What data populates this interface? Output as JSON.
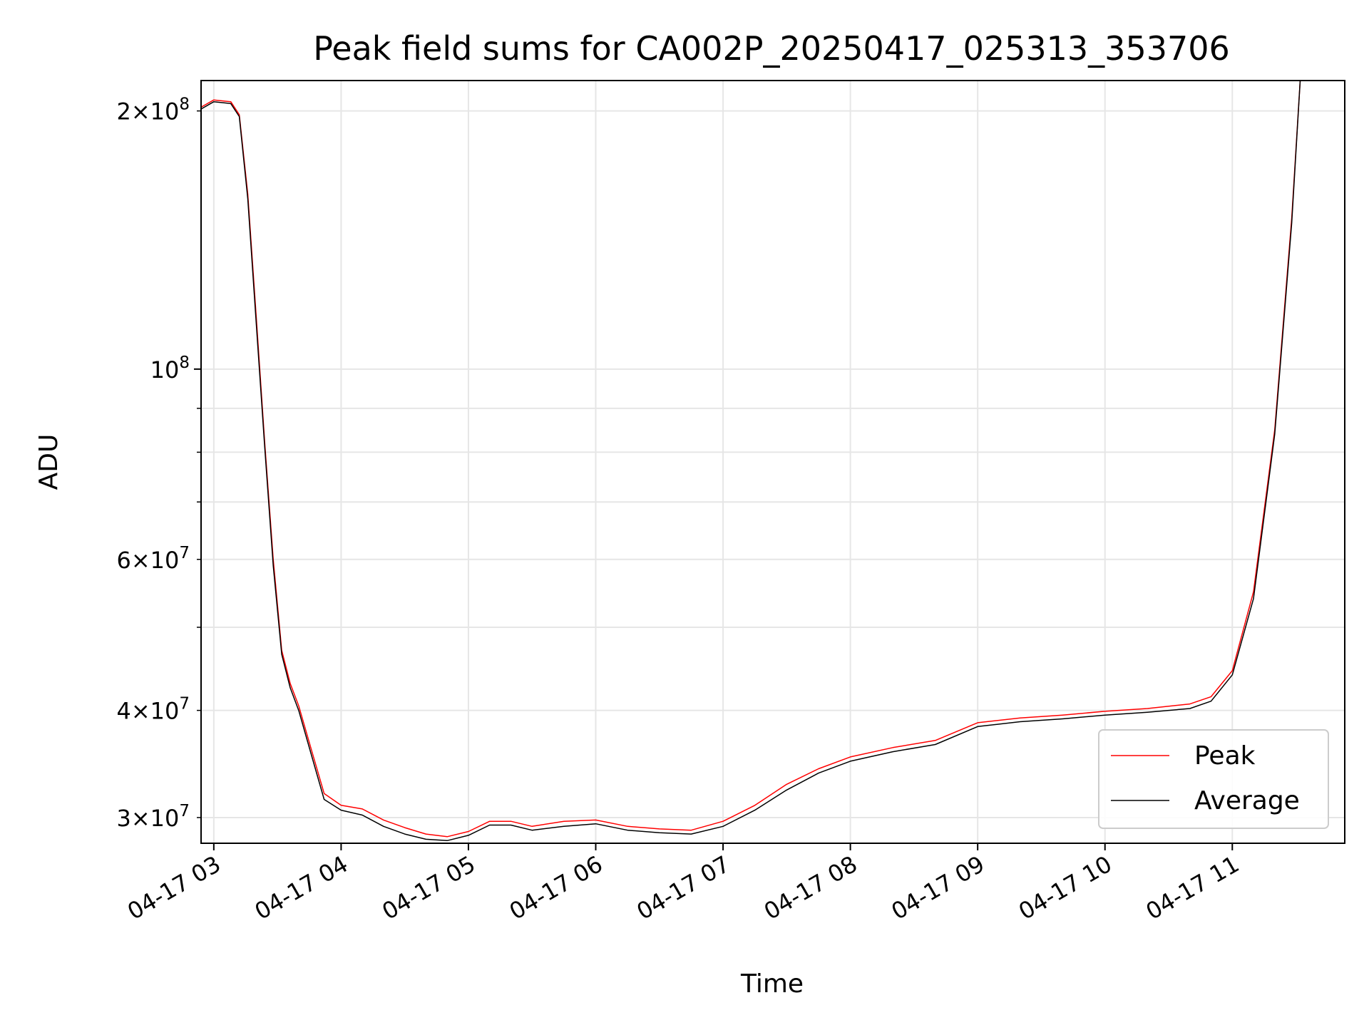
{
  "chart_data": {
    "type": "line",
    "title": "Peak field sums for CA002P_20250417_025313_353706",
    "xlabel": "Time",
    "ylabel": "ADU",
    "y_scale": "log",
    "grid": true,
    "legend_position": "lower-right",
    "xlim": [
      "2025-04-17 02:54",
      "2025-04-17 11:53"
    ],
    "ylim": [
      28000000,
      217000000
    ],
    "x_ticks": [
      {
        "value": "2025-04-17 03:00",
        "label": "04-17 03"
      },
      {
        "value": "2025-04-17 04:00",
        "label": "04-17 04"
      },
      {
        "value": "2025-04-17 05:00",
        "label": "04-17 05"
      },
      {
        "value": "2025-04-17 06:00",
        "label": "04-17 06"
      },
      {
        "value": "2025-04-17 07:00",
        "label": "04-17 07"
      },
      {
        "value": "2025-04-17 08:00",
        "label": "04-17 08"
      },
      {
        "value": "2025-04-17 09:00",
        "label": "04-17 09"
      },
      {
        "value": "2025-04-17 10:00",
        "label": "04-17 10"
      },
      {
        "value": "2025-04-17 11:00",
        "label": "04-17 11"
      }
    ],
    "y_major_ticks": [
      {
        "value": 100000000,
        "mantissa": "",
        "exponent": "8"
      }
    ],
    "y_minor_ticks": [
      {
        "value": 30000000,
        "mantissa": "3",
        "exponent": "7"
      },
      {
        "value": 40000000,
        "mantissa": "4",
        "exponent": "7"
      },
      {
        "value": 50000000,
        "mantissa": "",
        "exponent": ""
      },
      {
        "value": 60000000,
        "mantissa": "6",
        "exponent": "7"
      },
      {
        "value": 70000000,
        "mantissa": "",
        "exponent": ""
      },
      {
        "value": 80000000,
        "mantissa": "",
        "exponent": ""
      },
      {
        "value": 90000000,
        "mantissa": "",
        "exponent": ""
      },
      {
        "value": 200000000,
        "mantissa": "2",
        "exponent": "8"
      }
    ],
    "series": [
      {
        "name": "Peak",
        "color": "#ff0000",
        "points": [
          [
            "2025-04-17 02:54",
            202000000
          ],
          [
            "2025-04-17 03:00",
            206000000
          ],
          [
            "2025-04-17 03:08",
            205000000
          ],
          [
            "2025-04-17 03:12",
            198000000
          ],
          [
            "2025-04-17 03:16",
            160000000
          ],
          [
            "2025-04-17 03:20",
            115000000
          ],
          [
            "2025-04-17 03:24",
            82000000
          ],
          [
            "2025-04-17 03:28",
            60000000
          ],
          [
            "2025-04-17 03:32",
            47000000
          ],
          [
            "2025-04-17 03:36",
            43000000
          ],
          [
            "2025-04-17 03:40",
            40500000
          ],
          [
            "2025-04-17 03:46",
            36000000
          ],
          [
            "2025-04-17 03:52",
            32000000
          ],
          [
            "2025-04-17 04:00",
            31000000
          ],
          [
            "2025-04-17 04:10",
            30700000
          ],
          [
            "2025-04-17 04:20",
            29800000
          ],
          [
            "2025-04-17 04:30",
            29200000
          ],
          [
            "2025-04-17 04:40",
            28700000
          ],
          [
            "2025-04-17 04:50",
            28500000
          ],
          [
            "2025-04-17 05:00",
            28900000
          ],
          [
            "2025-04-17 05:10",
            29700000
          ],
          [
            "2025-04-17 05:20",
            29700000
          ],
          [
            "2025-04-17 05:30",
            29300000
          ],
          [
            "2025-04-17 05:45",
            29700000
          ],
          [
            "2025-04-17 06:00",
            29800000
          ],
          [
            "2025-04-17 06:15",
            29300000
          ],
          [
            "2025-04-17 06:30",
            29100000
          ],
          [
            "2025-04-17 06:45",
            29000000
          ],
          [
            "2025-04-17 07:00",
            29700000
          ],
          [
            "2025-04-17 07:15",
            31000000
          ],
          [
            "2025-04-17 07:30",
            32800000
          ],
          [
            "2025-04-17 07:45",
            34200000
          ],
          [
            "2025-04-17 08:00",
            35300000
          ],
          [
            "2025-04-17 08:20",
            36200000
          ],
          [
            "2025-04-17 08:40",
            36900000
          ],
          [
            "2025-04-17 09:00",
            38700000
          ],
          [
            "2025-04-17 09:20",
            39200000
          ],
          [
            "2025-04-17 09:40",
            39500000
          ],
          [
            "2025-04-17 10:00",
            39900000
          ],
          [
            "2025-04-17 10:20",
            40200000
          ],
          [
            "2025-04-17 10:40",
            40700000
          ],
          [
            "2025-04-17 10:50",
            41500000
          ],
          [
            "2025-04-17 11:00",
            44500000
          ],
          [
            "2025-04-17 11:10",
            55000000
          ],
          [
            "2025-04-17 11:20",
            85000000
          ],
          [
            "2025-04-17 11:28",
            150000000
          ],
          [
            "2025-04-17 11:32",
            217000000
          ]
        ]
      },
      {
        "name": "Average",
        "color": "#000000",
        "points": [
          [
            "2025-04-17 02:54",
            201000000
          ],
          [
            "2025-04-17 03:00",
            205000000
          ],
          [
            "2025-04-17 03:08",
            204000000
          ],
          [
            "2025-04-17 03:12",
            197000000
          ],
          [
            "2025-04-17 03:16",
            158000000
          ],
          [
            "2025-04-17 03:20",
            113000000
          ],
          [
            "2025-04-17 03:24",
            81000000
          ],
          [
            "2025-04-17 03:28",
            59000000
          ],
          [
            "2025-04-17 03:32",
            46500000
          ],
          [
            "2025-04-17 03:36",
            42500000
          ],
          [
            "2025-04-17 03:40",
            40000000
          ],
          [
            "2025-04-17 03:46",
            35500000
          ],
          [
            "2025-04-17 03:52",
            31500000
          ],
          [
            "2025-04-17 04:00",
            30600000
          ],
          [
            "2025-04-17 04:10",
            30200000
          ],
          [
            "2025-04-17 04:20",
            29300000
          ],
          [
            "2025-04-17 04:30",
            28700000
          ],
          [
            "2025-04-17 04:40",
            28300000
          ],
          [
            "2025-04-17 04:50",
            28200000
          ],
          [
            "2025-04-17 05:00",
            28600000
          ],
          [
            "2025-04-17 05:10",
            29400000
          ],
          [
            "2025-04-17 05:20",
            29400000
          ],
          [
            "2025-04-17 05:30",
            29000000
          ],
          [
            "2025-04-17 05:45",
            29300000
          ],
          [
            "2025-04-17 06:00",
            29500000
          ],
          [
            "2025-04-17 06:15",
            29000000
          ],
          [
            "2025-04-17 06:30",
            28800000
          ],
          [
            "2025-04-17 06:45",
            28700000
          ],
          [
            "2025-04-17 07:00",
            29300000
          ],
          [
            "2025-04-17 07:15",
            30600000
          ],
          [
            "2025-04-17 07:30",
            32300000
          ],
          [
            "2025-04-17 07:45",
            33800000
          ],
          [
            "2025-04-17 08:00",
            34900000
          ],
          [
            "2025-04-17 08:20",
            35800000
          ],
          [
            "2025-04-17 08:40",
            36500000
          ],
          [
            "2025-04-17 09:00",
            38300000
          ],
          [
            "2025-04-17 09:20",
            38800000
          ],
          [
            "2025-04-17 09:40",
            39100000
          ],
          [
            "2025-04-17 10:00",
            39500000
          ],
          [
            "2025-04-17 10:20",
            39800000
          ],
          [
            "2025-04-17 10:40",
            40200000
          ],
          [
            "2025-04-17 10:50",
            41000000
          ],
          [
            "2025-04-17 11:00",
            44000000
          ],
          [
            "2025-04-17 11:10",
            54000000
          ],
          [
            "2025-04-17 11:20",
            84000000
          ],
          [
            "2025-04-17 11:28",
            148000000
          ],
          [
            "2025-04-17 11:32",
            217000000
          ]
        ]
      }
    ]
  }
}
